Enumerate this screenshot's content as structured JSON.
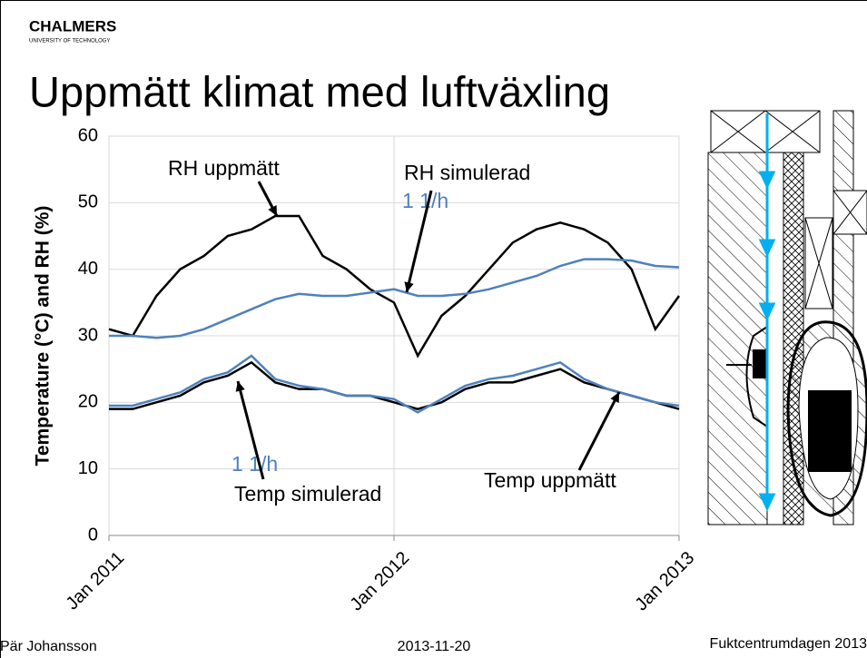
{
  "header": {
    "logo": "CHALMERS",
    "logo_sub": "UNIVERSITY OF TECHNOLOGY",
    "title": "Uppmätt klimat med luftväxling"
  },
  "footer": {
    "author": "Pär Johansson",
    "date": "2013-11-20",
    "event": "Fuktcentrumdagen 2013"
  },
  "chart_data": {
    "type": "line",
    "ylabel": "Temperature (°C) and RH (%)",
    "x": [
      "2011-01",
      "2011-02",
      "2011-03",
      "2011-04",
      "2011-05",
      "2011-06",
      "2011-07",
      "2011-08",
      "2011-09",
      "2011-10",
      "2011-11",
      "2011-12",
      "2012-01",
      "2012-02",
      "2012-03",
      "2012-04",
      "2012-05",
      "2012-06",
      "2012-07",
      "2012-08",
      "2012-09",
      "2012-10",
      "2012-11",
      "2012-12",
      "2013-01"
    ],
    "xlim": [
      "2011-01",
      "2013-01"
    ],
    "xticks": [
      {
        "value": "2011-01",
        "label": "Jan 2011"
      },
      {
        "value": "2012-01",
        "label": "Jan 2012"
      },
      {
        "value": "2013-01",
        "label": "Jan 2013"
      }
    ],
    "ylim": [
      0,
      60
    ],
    "yticks": [
      0,
      10,
      20,
      30,
      40,
      50,
      60
    ],
    "grid": true,
    "series": [
      {
        "color": "#000000",
        "values": [
          31,
          30,
          36,
          40,
          42,
          45,
          46,
          48,
          48,
          42,
          40,
          37,
          35,
          27,
          33,
          36,
          40,
          44,
          46,
          47,
          46,
          44,
          40,
          31,
          36
        ]
      },
      {
        "color": "#4f81bd",
        "values": [
          30,
          30,
          29.7,
          30,
          31,
          32.5,
          34,
          35.5,
          36.3,
          36,
          36,
          36.5,
          37,
          36,
          36,
          36.3,
          37,
          38,
          39,
          40.5,
          41.5,
          41.5,
          41.3,
          40.5,
          40.3
        ]
      },
      {
        "color": "#000000",
        "values": [
          19,
          19,
          20,
          21,
          23,
          24,
          26,
          23,
          22,
          22,
          21,
          21,
          20,
          19,
          20,
          22,
          23,
          23,
          24,
          25,
          23,
          22,
          21,
          20,
          19
        ]
      },
      {
        "color": "#4f81bd",
        "values": [
          19.5,
          19.5,
          20.5,
          21.5,
          23.5,
          24.5,
          27,
          23.5,
          22.5,
          22,
          21,
          21,
          20.5,
          18.5,
          20.5,
          22.5,
          23.5,
          24,
          25,
          26,
          23.5,
          22,
          21,
          20,
          19.5
        ]
      }
    ],
    "annotations": [
      {
        "text": "RH uppmätt",
        "color": "#000000"
      },
      {
        "text": "RH simulerad",
        "color": "#000000"
      },
      {
        "text": "1 1/h",
        "color": "#4f81bd"
      },
      {
        "text": "1 1/h",
        "color": "#4f81bd"
      },
      {
        "text": "Temp simulerad",
        "color": "#000000"
      },
      {
        "text": "Temp uppmätt",
        "color": "#000000"
      }
    ]
  }
}
